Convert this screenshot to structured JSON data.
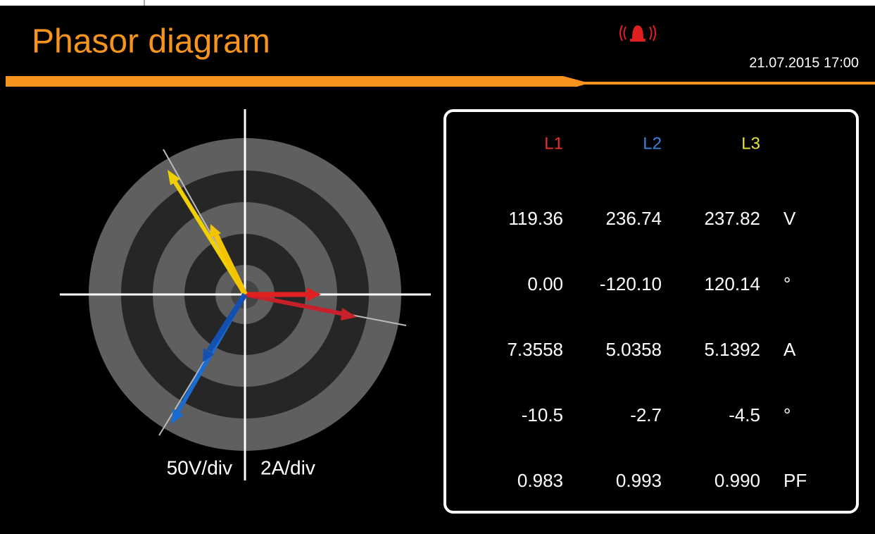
{
  "header": {
    "title": "Phasor diagram",
    "datetime": "21.07.2015 17:00"
  },
  "diagram": {
    "voltage_scale": "50V/div",
    "current_scale": "2A/div"
  },
  "table": {
    "columns": [
      "L1",
      "L2",
      "L3"
    ],
    "rows": [
      {
        "values": [
          "119.36",
          "236.74",
          "237.82"
        ],
        "unit": "V"
      },
      {
        "values": [
          "0.00",
          "-120.10",
          "120.14"
        ],
        "unit": "°"
      },
      {
        "values": [
          "7.3558",
          "5.0358",
          "5.1392"
        ],
        "unit": "A"
      },
      {
        "values": [
          "-10.5",
          "-2.7",
          "-4.5"
        ],
        "unit": "°"
      },
      {
        "values": [
          "0.983",
          "0.993",
          "0.990"
        ],
        "unit": "PF"
      }
    ]
  }
}
